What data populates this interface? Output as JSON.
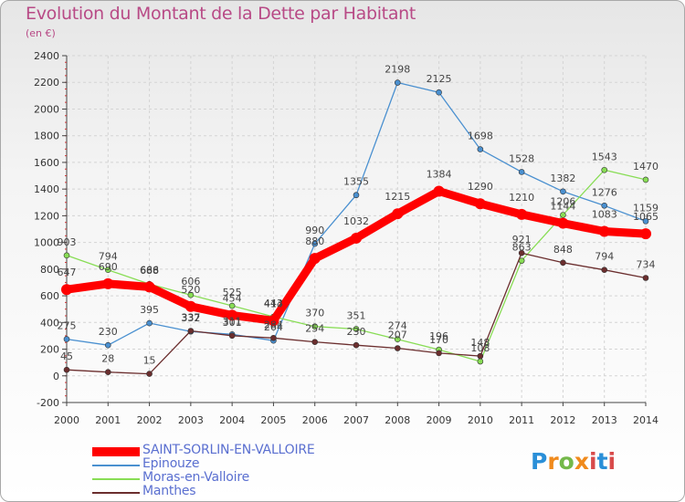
{
  "title": "Evolution du Montant de la Dette par Habitant",
  "subtitle": "(en €)",
  "logo_text": "Proxiti",
  "chart_data": {
    "type": "line",
    "title": "Evolution du Montant de la Dette par Habitant",
    "ylabel": "(en €)",
    "xlabel": "",
    "x": [
      "2000",
      "2001",
      "2002",
      "2003",
      "2004",
      "2005",
      "2006",
      "2007",
      "2008",
      "2009",
      "2010",
      "2011",
      "2012",
      "2013",
      "2014"
    ],
    "yticks": [
      -200,
      0,
      200,
      400,
      600,
      800,
      1000,
      1200,
      1400,
      1600,
      1800,
      2000,
      2200,
      2400
    ],
    "ylim": [
      -200,
      2400
    ],
    "grid": true,
    "legend_position": "bottom-left",
    "series": [
      {
        "name": "SAINT-SORLIN-EN-VALLOIRE",
        "color": "#ff0000",
        "values": [
          647,
          690,
          666,
          520,
          454,
          414,
          880,
          1032,
          1215,
          1384,
          1290,
          1210,
          1144,
          1083,
          1065
        ]
      },
      {
        "name": "Epinouze",
        "color": "#4a90d0",
        "values": [
          275,
          230,
          395,
          332,
          311,
          264,
          990,
          1355,
          2198,
          2125,
          1698,
          1528,
          1382,
          1276,
          1159
        ]
      },
      {
        "name": "Moras-en-Valloire",
        "color": "#88dd55",
        "values": [
          903,
          794,
          688,
          606,
          525,
          443,
          370,
          351,
          274,
          196,
          108,
          863,
          1206,
          1543,
          1470
        ]
      },
      {
        "name": "Manthes",
        "color": "#6b2e2e",
        "values": [
          45,
          28,
          15,
          337,
          301,
          284,
          254,
          230,
          207,
          170,
          148,
          921,
          848,
          794,
          734
        ]
      }
    ]
  }
}
